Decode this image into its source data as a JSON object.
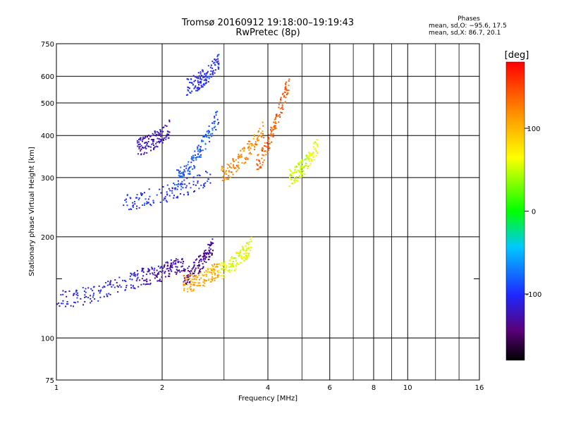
{
  "title": {
    "line1": "Tromsø 20160912 19:18:00–19:19:43",
    "line2": "RwPretec (8p)"
  },
  "stats": {
    "heading": "Phases",
    "o_mode": "mean, sd,O: −95.6, 17.5",
    "x_mode": "mean, sd,X: 86.7, 20.1"
  },
  "colorbar": {
    "unit": "[deg]",
    "ticks": [
      -100,
      0,
      100
    ],
    "range": [
      -180,
      180
    ],
    "colormap": "rainbow"
  },
  "chart_data": {
    "type": "scatter",
    "xlabel": "Frequency [MHz]",
    "ylabel": "Stationary phase Virtual Height [km]",
    "xscale": "log",
    "yscale": "log",
    "xlim": [
      1,
      16
    ],
    "ylim": [
      75,
      750
    ],
    "x_ticks": [
      1,
      2,
      4,
      6,
      8,
      10,
      16
    ],
    "x_minor_ticks": [
      3,
      5,
      7,
      9,
      12,
      14
    ],
    "y_ticks": [
      75,
      100,
      200,
      300,
      400,
      500,
      600,
      750
    ],
    "y_minor_ticks": [
      150
    ],
    "grid": true,
    "color_encoding": "phase [deg]",
    "traces": [
      {
        "freq_range": [
          1.0,
          1.75
        ],
        "height_range": [
          130,
          152
        ],
        "phase": -110
      },
      {
        "freq_range": [
          1.75,
          2.3
        ],
        "height_range": [
          152,
          168
        ],
        "phase": -125
      },
      {
        "freq_range": [
          2.3,
          2.8
        ],
        "height_range": [
          152,
          190
        ],
        "phase": -135
      },
      {
        "freq_range": [
          2.3,
          2.9
        ],
        "height_range": [
          145,
          160
        ],
        "phase": 105
      },
      {
        "freq_range": [
          2.9,
          3.6
        ],
        "height_range": [
          158,
          190
        ],
        "phase": 60
      },
      {
        "freq_range": [
          1.55,
          2.75
        ],
        "height_range": [
          255,
          300
        ],
        "phase": -100
      },
      {
        "freq_range": [
          2.2,
          2.9
        ],
        "height_range": [
          300,
          460
        ],
        "phase": -85
      },
      {
        "freq_range": [
          2.95,
          3.9
        ],
        "height_range": [
          310,
          420
        ],
        "phase": 120
      },
      {
        "freq_range": [
          3.7,
          4.6
        ],
        "height_range": [
          330,
          580
        ],
        "phase": 140
      },
      {
        "freq_range": [
          4.6,
          5.6
        ],
        "height_range": [
          300,
          380
        ],
        "phase": 55
      },
      {
        "freq_range": [
          1.7,
          2.1
        ],
        "height_range": [
          370,
          420
        ],
        "phase": -125
      },
      {
        "freq_range": [
          2.35,
          2.9
        ],
        "height_range": [
          560,
          660
        ],
        "phase": -105
      }
    ]
  }
}
